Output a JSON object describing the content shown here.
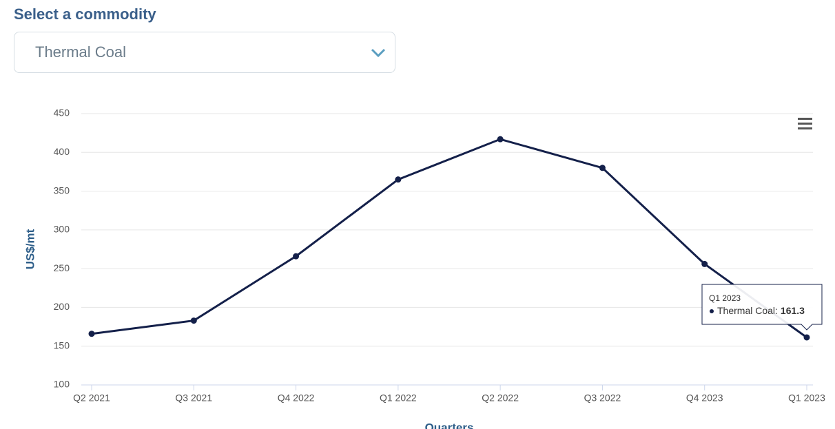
{
  "header": {
    "label": "Select a commodity"
  },
  "dropdown": {
    "selected": "Thermal Coal"
  },
  "chart_data": {
    "type": "line",
    "categories": [
      "Q2 2021",
      "Q3 2021",
      "Q4 2022",
      "Q1 2022",
      "Q2 2022",
      "Q3 2022",
      "Q4 2023",
      "Q1 2023"
    ],
    "series": [
      {
        "name": "Thermal Coal",
        "color": "#14204a",
        "values": [
          166,
          183,
          266,
          365,
          417,
          380,
          256,
          161.3
        ]
      }
    ],
    "ylim": [
      100,
      450
    ],
    "yticks": [
      100,
      150,
      200,
      250,
      300,
      350,
      400,
      450
    ],
    "ylabel": "US$/mt",
    "xlabel": "Quarters",
    "grid": true,
    "tooltip": {
      "separator": ":"
    }
  }
}
